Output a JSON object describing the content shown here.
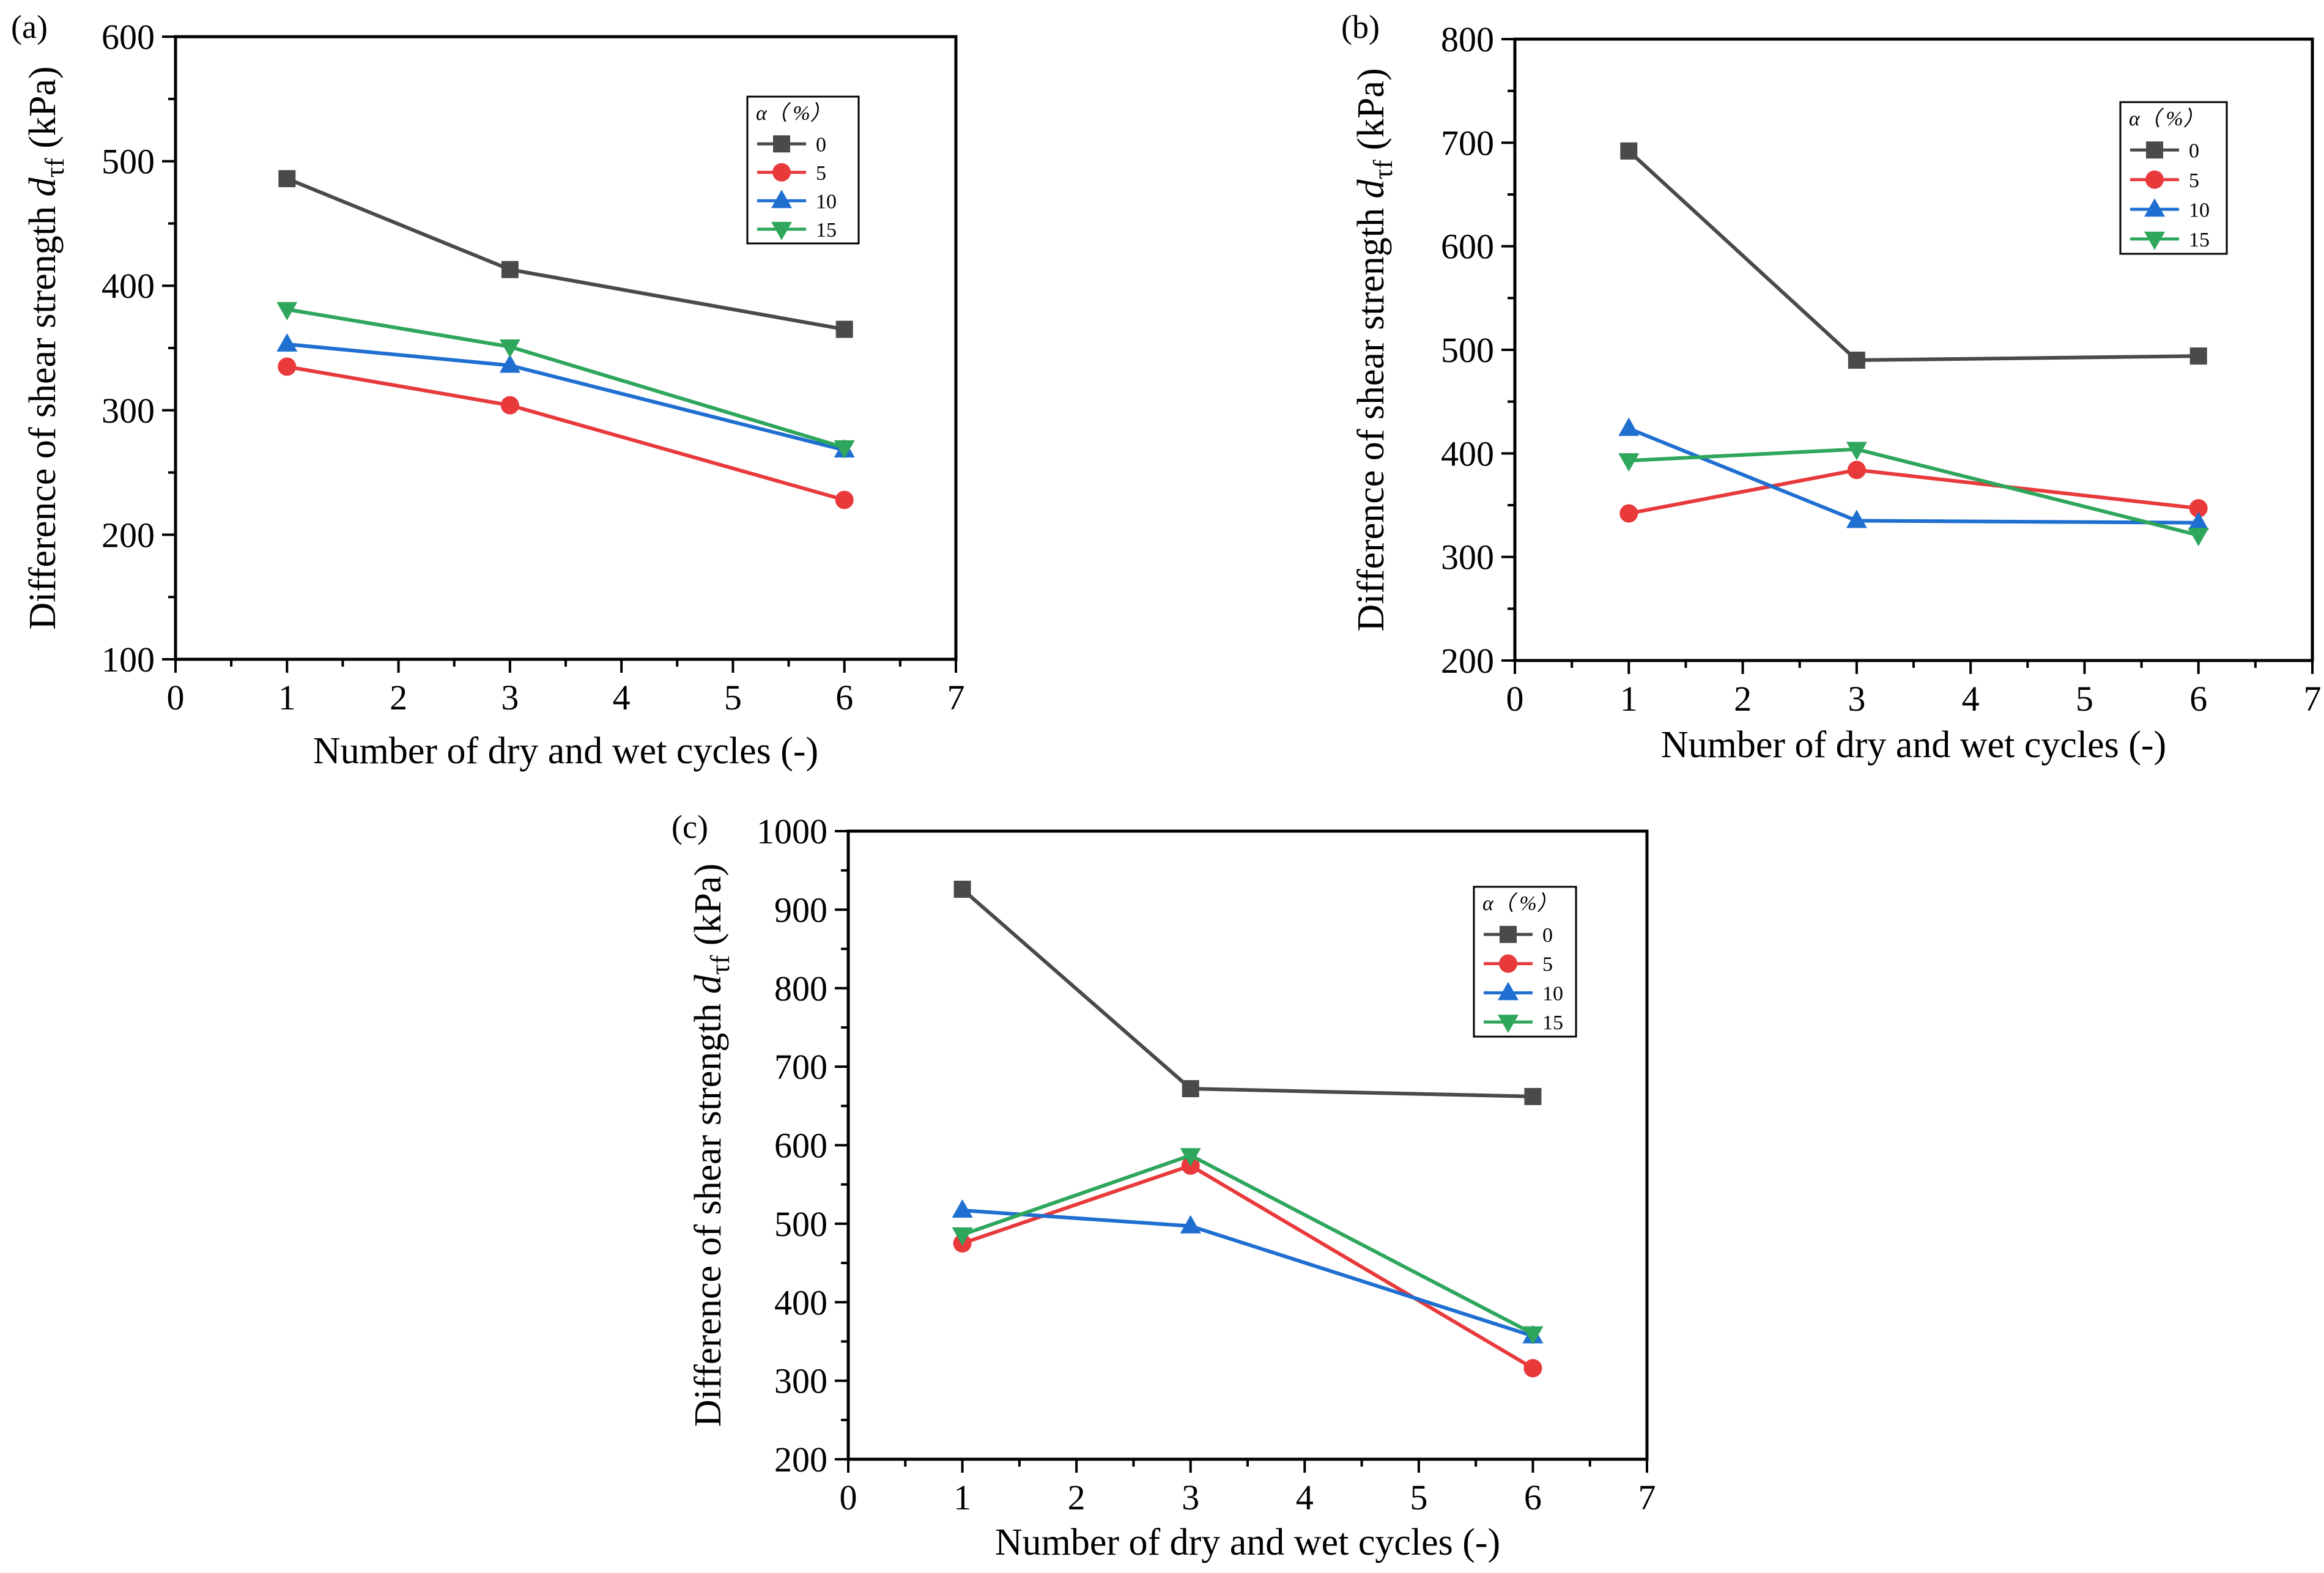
{
  "chart_data": [
    {
      "type": "line",
      "panel_label": "(a)",
      "xlabel": "Number of dry and wet cycles (-)",
      "ylabel_prefix": "Difference of shear strength ",
      "ylabel_var": "d",
      "ylabel_sub": "τf",
      "ylabel_suffix": " (kPa)",
      "xlim": [
        0,
        7
      ],
      "ylim": [
        100,
        600
      ],
      "xticks": [
        0,
        1,
        2,
        3,
        4,
        5,
        6,
        7
      ],
      "yticks": [
        100,
        200,
        300,
        400,
        500,
        600
      ],
      "x": [
        1,
        3,
        6
      ],
      "legend_title": "α（ %）",
      "legend_position": "top-right",
      "series": [
        {
          "name": "0",
          "values": [
            486,
            413,
            365
          ],
          "color": "#4a4a4a",
          "marker": "square"
        },
        {
          "name": "5",
          "values": [
            335,
            304,
            228
          ],
          "color": "#e8393b",
          "marker": "circle"
        },
        {
          "name": "10",
          "values": [
            353,
            336,
            268
          ],
          "color": "#1f6fd1",
          "marker": "triangle-up"
        },
        {
          "name": "15",
          "values": [
            381,
            351,
            270
          ],
          "color": "#2ea65c",
          "marker": "triangle-down"
        }
      ]
    },
    {
      "type": "line",
      "panel_label": "(b)",
      "xlabel": "Number of dry and wet cycles (-)",
      "ylabel_prefix": "Difference of shear strength ",
      "ylabel_var": "d",
      "ylabel_sub": "τf",
      "ylabel_suffix": " (kPa)",
      "xlim": [
        0,
        7
      ],
      "ylim": [
        200,
        800
      ],
      "xticks": [
        0,
        1,
        2,
        3,
        4,
        5,
        6,
        7
      ],
      "yticks": [
        200,
        300,
        400,
        500,
        600,
        700,
        800
      ],
      "x": [
        1,
        3,
        6
      ],
      "legend_title": "α（ %）",
      "legend_position": "top-right",
      "series": [
        {
          "name": "0",
          "values": [
            692,
            490,
            494
          ],
          "color": "#4a4a4a",
          "marker": "square"
        },
        {
          "name": "5",
          "values": [
            342,
            384,
            347
          ],
          "color": "#e8393b",
          "marker": "circle"
        },
        {
          "name": "10",
          "values": [
            424,
            335,
            333
          ],
          "color": "#1f6fd1",
          "marker": "triangle-up"
        },
        {
          "name": "15",
          "values": [
            393,
            404,
            321
          ],
          "color": "#2ea65c",
          "marker": "triangle-down"
        }
      ]
    },
    {
      "type": "line",
      "panel_label": "(c)",
      "xlabel": "Number of dry and wet cycles (-)",
      "ylabel_prefix": "Difference of shear strength ",
      "ylabel_var": "d",
      "ylabel_sub": "τf",
      "ylabel_suffix": " (kPa)",
      "xlim": [
        0,
        7
      ],
      "ylim": [
        200,
        1000
      ],
      "xticks": [
        0,
        1,
        2,
        3,
        4,
        5,
        6,
        7
      ],
      "yticks": [
        200,
        300,
        400,
        500,
        600,
        700,
        800,
        900,
        1000
      ],
      "x": [
        1,
        3,
        6
      ],
      "legend_title": "α（ %）",
      "legend_position": "top-right",
      "series": [
        {
          "name": "0",
          "values": [
            926,
            672,
            662
          ],
          "color": "#4a4a4a",
          "marker": "square"
        },
        {
          "name": "5",
          "values": [
            475,
            574,
            316
          ],
          "color": "#e8393b",
          "marker": "circle"
        },
        {
          "name": "10",
          "values": [
            517,
            497,
            357
          ],
          "color": "#1f6fd1",
          "marker": "triangle-up"
        },
        {
          "name": "15",
          "values": [
            486,
            587,
            360
          ],
          "color": "#2ea65c",
          "marker": "triangle-down"
        }
      ]
    }
  ]
}
